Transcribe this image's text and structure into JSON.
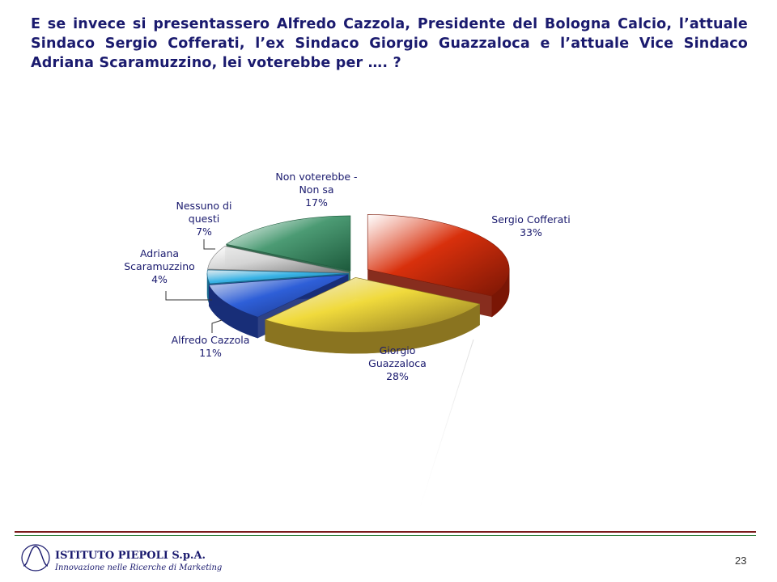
{
  "slide": {
    "question": "E se invece si presentassero Alfredo Cazzola, Presidente del Bologna Calcio, l’attuale Sindaco Sergio Cofferati, l’ex Sindaco Giorgio Guazzaloca e l’attuale Vice Sindaco Adriana Scaramuzzino, lei voterebbe per …. ?",
    "page_number": "23"
  },
  "footer": {
    "company_name": "ISTITUTO PIEPOLI S.p.A.",
    "company_tagline": "Innovazione nelle Ricerche di Marketing"
  },
  "chart_data": {
    "type": "pie",
    "style": "3d-exploded",
    "title": "",
    "slices": [
      {
        "label_lines": [
          "Sergio Cofferati"
        ],
        "value": 33,
        "value_label": "33%",
        "color": "#d8300c",
        "shade": "#7a1605"
      },
      {
        "label_lines": [
          "Giorgio",
          "Guazzaloca"
        ],
        "value": 28,
        "value_label": "28%",
        "color": "#f0da3c",
        "shade": "#8a7420"
      },
      {
        "label_lines": [
          "Alfredo Cazzola"
        ],
        "value": 11,
        "value_label": "11%",
        "color": "#2e5fd8",
        "shade": "#182e78"
      },
      {
        "label_lines": [
          "Adriana",
          "Scaramuzzino"
        ],
        "value": 4,
        "value_label": "4%",
        "color": "#39b3e6",
        "shade": "#1a6a8e"
      },
      {
        "label_lines": [
          "Nessuno di",
          "questi"
        ],
        "value": 7,
        "value_label": "7%",
        "color": "#d4d4d4",
        "shade": "#7c7c7c"
      },
      {
        "label_lines": [
          "Non voterebbe -",
          "Non sa"
        ],
        "value": 17,
        "value_label": "17%",
        "color": "#4c9b74",
        "shade": "#1d5a3c"
      }
    ]
  }
}
